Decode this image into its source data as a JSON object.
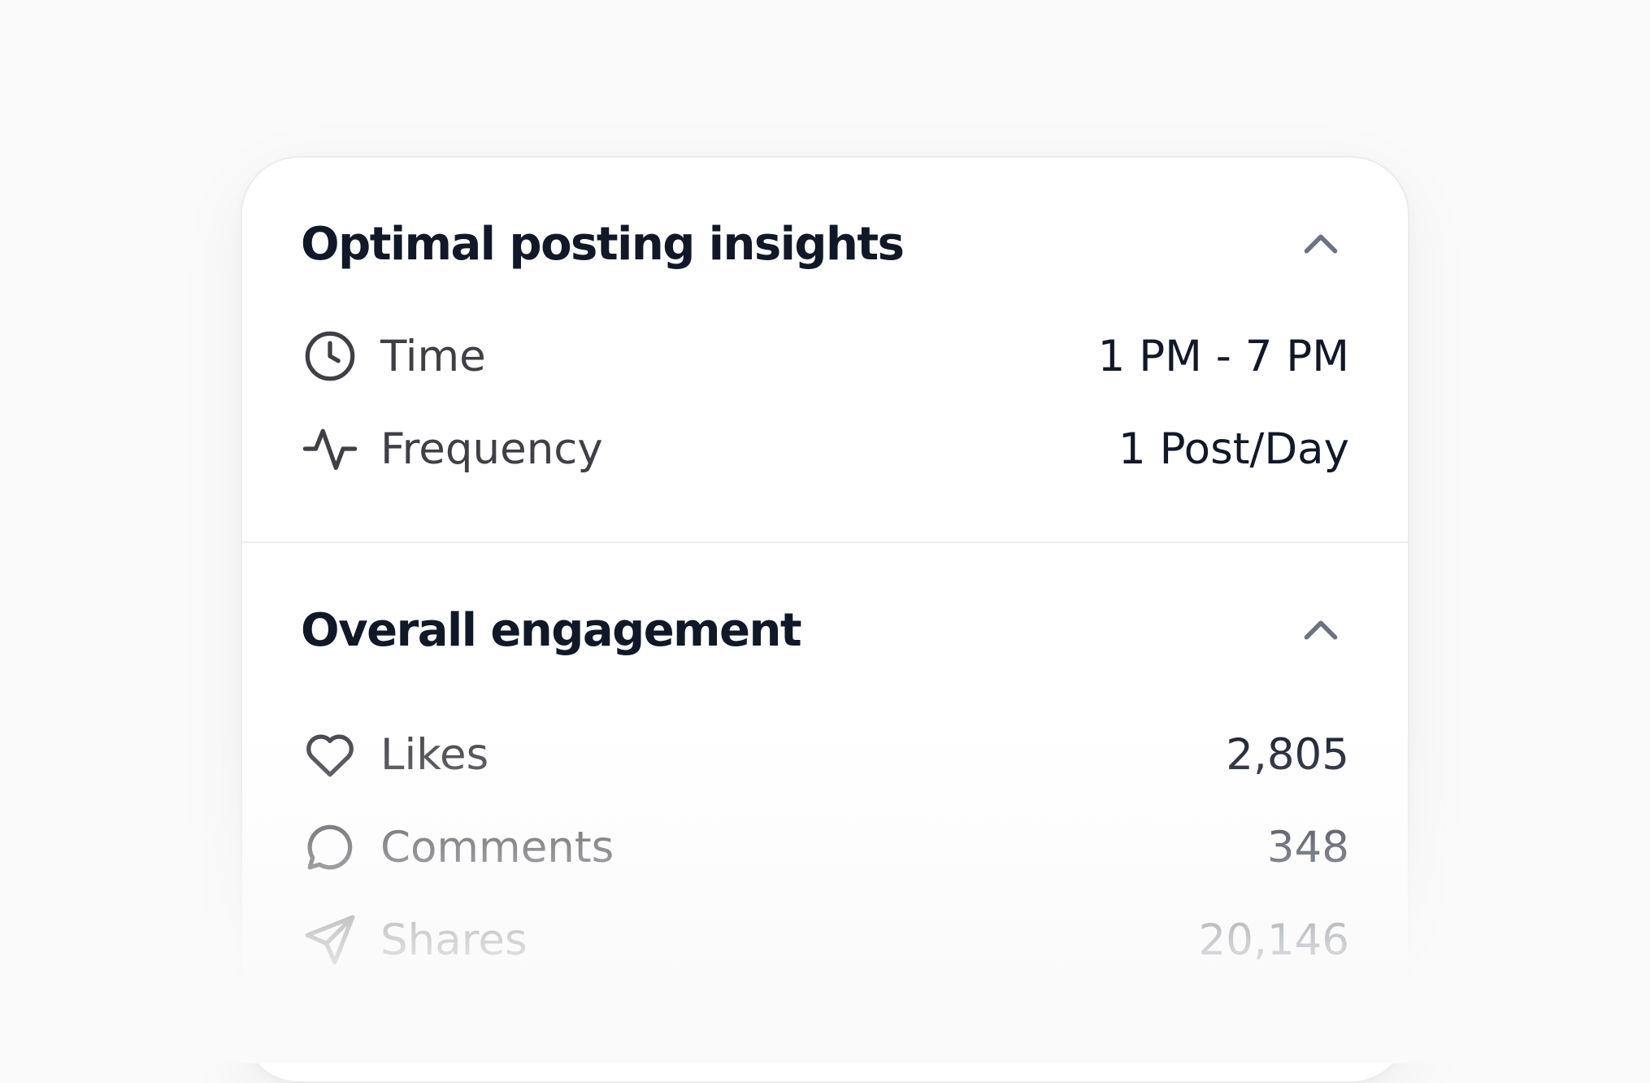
{
  "posting_insights": {
    "title": "Optimal posting insights",
    "collapse_icon": "chevron-up-icon",
    "rows": [
      {
        "icon": "clock-icon",
        "label": "Time",
        "value": "1 PM - 7 PM"
      },
      {
        "icon": "activity-icon",
        "label": "Frequency",
        "value": "1 Post/Day"
      }
    ]
  },
  "engagement": {
    "title": "Overall engagement",
    "collapse_icon": "chevron-up-icon",
    "rows": [
      {
        "icon": "heart-icon",
        "label": "Likes",
        "value": "2,805"
      },
      {
        "icon": "comment-icon",
        "label": "Comments",
        "value": "348"
      },
      {
        "icon": "send-icon",
        "label": "Shares",
        "value": "20,146"
      }
    ]
  },
  "colors": {
    "page_background": "#fafafa",
    "card_background": "#ffffff",
    "title_text": "#111827",
    "label_text": "#3f3f46",
    "icon_stroke": "#3f3f46",
    "chevron": "#6b7280"
  }
}
